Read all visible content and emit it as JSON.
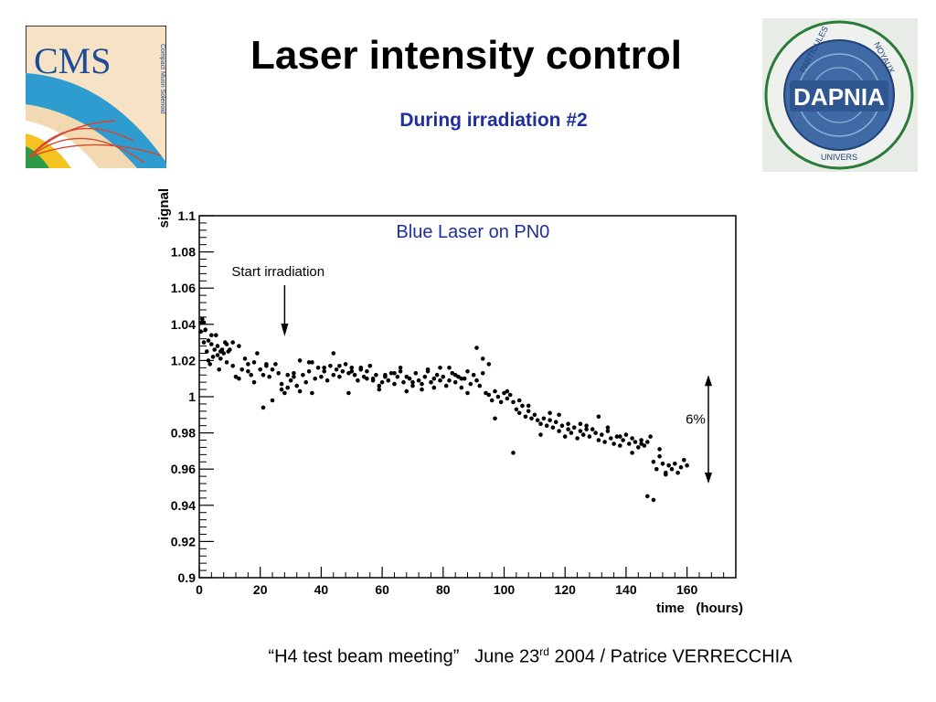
{
  "slide": {
    "title": "Laser intensity control",
    "subtitle": "During irradiation #2",
    "footer": {
      "meeting": "“H4 test beam meeting”",
      "date_pre": "June 23",
      "date_sup": "rd",
      "date_post": " 2004 / Patrice VERRECCHIA"
    }
  },
  "logos": {
    "left": {
      "text": "CMS",
      "caption": "Compact Muon Solenoid"
    },
    "right": {
      "text": "DAPNIA",
      "ring_top": "PARTICULES",
      "ring_right": "NOYAUX",
      "ring_bottom": "UNIVERS"
    }
  },
  "colors": {
    "title": "#000000",
    "subtitle": "#1f2f9e",
    "chart_title": "#1f2f9e",
    "markers": "#000000"
  },
  "chart_data": {
    "type": "scatter",
    "title": "Blue Laser on PN0",
    "xlabel": "time   (hours)",
    "ylabel": "signal",
    "xlim": [
      0,
      176
    ],
    "ylim": [
      0.9,
      1.1
    ],
    "xticks": [
      0,
      20,
      40,
      60,
      80,
      100,
      120,
      140,
      160
    ],
    "yticks": [
      0.9,
      0.92,
      0.94,
      0.96,
      0.98,
      1,
      1.02,
      1.04,
      1.06,
      1.08,
      1.1
    ],
    "ytick_labels": [
      "0.9",
      "0.92",
      "0.94",
      "0.96",
      "0.98",
      "1",
      "1.02",
      "1.04",
      "1.06",
      "1.08",
      "1.1"
    ],
    "grid": false,
    "annotations": [
      {
        "text": "Start irradiation",
        "x": 28
      },
      {
        "text": "6%",
        "y_range": [
          0.953,
          1.011
        ]
      }
    ],
    "series": [
      {
        "x": [
          0.5,
          1,
          1.5,
          2,
          2.5,
          3,
          3.5,
          4,
          4.5,
          5,
          5.5,
          6,
          6.5,
          7,
          7.5,
          8,
          8.5,
          9,
          9.5,
          10,
          11,
          12,
          13,
          14,
          15,
          16,
          17,
          18,
          19,
          20,
          21,
          22,
          23,
          24,
          25,
          26,
          27,
          28,
          29,
          30,
          31,
          32,
          33,
          34,
          35,
          36,
          37,
          38,
          39,
          40,
          41,
          42,
          43,
          44,
          45,
          46,
          47,
          48,
          49,
          50,
          51,
          52,
          53,
          54,
          55,
          56,
          57,
          58,
          59,
          60,
          61,
          62,
          63,
          64,
          65,
          66,
          67,
          68,
          69,
          70,
          71,
          72,
          73,
          74,
          75,
          76,
          77,
          78,
          79,
          80,
          81,
          82,
          83,
          84,
          85,
          86,
          87,
          88,
          89,
          90,
          91,
          92,
          93,
          94,
          95,
          96,
          97,
          98,
          99,
          100,
          101,
          102,
          103,
          104,
          105,
          106,
          107,
          108,
          109,
          110,
          111,
          112,
          113,
          114,
          115,
          116,
          117,
          118,
          119,
          120,
          121,
          122,
          123,
          124,
          125,
          126,
          127,
          128,
          129,
          130,
          131,
          132,
          133,
          134,
          135,
          136,
          137,
          138,
          139,
          140,
          141,
          142,
          143,
          144,
          145,
          146,
          147,
          148,
          149,
          150,
          151,
          152,
          153,
          154,
          155,
          156,
          157,
          158,
          159,
          160,
          1.5,
          4,
          6,
          9,
          13,
          18,
          22,
          24,
          29,
          33,
          37,
          41,
          46,
          50,
          55,
          57,
          61,
          66,
          70,
          75,
          79,
          84,
          86,
          91,
          95,
          101,
          105,
          108,
          115,
          118,
          125,
          131,
          138,
          145,
          147,
          151,
          153,
          0.8,
          3,
          7,
          11,
          16,
          21,
          27,
          31,
          36,
          44,
          49,
          53,
          59,
          64,
          68,
          73,
          77,
          82,
          88,
          93,
          97,
          103,
          112,
          121,
          127,
          134,
          142,
          149
        ],
        "y": [
          1.036,
          1.043,
          1.03,
          1.037,
          1.025,
          1.031,
          1.018,
          1.029,
          1.022,
          1.026,
          1.034,
          1.023,
          1.015,
          1.021,
          1.026,
          1.024,
          1.03,
          1.019,
          1.025,
          1.026,
          1.017,
          1.011,
          1.028,
          1.015,
          1.021,
          1.018,
          1.012,
          1.019,
          1.024,
          1.015,
          1.012,
          1.017,
          1.011,
          1.015,
          1.018,
          1.013,
          1.007,
          1.002,
          1.005,
          1.009,
          1.011,
          1.006,
          1.003,
          1.012,
          1.008,
          1.014,
          1.002,
          1.01,
          1.016,
          1.011,
          1.014,
          1.009,
          1.017,
          1.012,
          1.015,
          1.011,
          1.014,
          1.018,
          1.013,
          1.016,
          1.012,
          1.009,
          1.015,
          1.011,
          1.014,
          1.017,
          1.009,
          1.012,
          1.006,
          1.008,
          1.011,
          1.009,
          1.013,
          1.007,
          1.011,
          1.014,
          1.008,
          1.003,
          1.01,
          1.006,
          1.013,
          1.009,
          1.004,
          1.011,
          1.014,
          1.008,
          1.005,
          1.012,
          1.009,
          1.011,
          1.006,
          1.009,
          1.013,
          1.008,
          1.011,
          1.005,
          1.01,
          1.014,
          1.007,
          1.012,
          1.009,
          1.006,
          1.013,
          1.002,
          1.001,
          0.998,
          1.003,
          1,
          0.997,
          1.002,
          0.999,
          1.001,
          0.997,
          0.993,
          0.991,
          0.995,
          0.989,
          0.992,
          0.988,
          0.99,
          0.987,
          0.985,
          0.988,
          0.984,
          0.987,
          0.983,
          0.986,
          0.981,
          0.984,
          0.978,
          0.982,
          0.98,
          0.983,
          0.977,
          0.981,
          0.979,
          0.984,
          0.978,
          0.982,
          0.98,
          0.976,
          0.979,
          0.975,
          0.981,
          0.977,
          0.974,
          0.978,
          0.973,
          0.976,
          0.979,
          0.974,
          0.977,
          0.975,
          0.972,
          0.976,
          0.973,
          0.975,
          0.978,
          0.964,
          0.96,
          0.967,
          0.963,
          0.958,
          0.962,
          0.96,
          0.963,
          0.958,
          0.961,
          0.965,
          0.962,
          1.041,
          1.034,
          1.028,
          1.029,
          1.01,
          1.008,
          1.018,
          0.998,
          1.012,
          1.02,
          1.019,
          1.016,
          1.017,
          1.014,
          1.01,
          1.01,
          1.012,
          1.016,
          1.008,
          1.015,
          1.016,
          1.012,
          1.01,
          1.027,
          1.018,
          1.003,
          0.998,
          0.995,
          0.991,
          0.99,
          0.985,
          0.989,
          0.978,
          0.974,
          0.945,
          0.971,
          0.957,
          1.041,
          1.02,
          1.025,
          1.03,
          1.014,
          0.994,
          1.004,
          1.013,
          1.019,
          1.024,
          1.002,
          1.016,
          1.004,
          1.013,
          1.011,
          1.007,
          1.01,
          1.016,
          1.002,
          1.021,
          0.988,
          0.969,
          0.979,
          0.985,
          0.982,
          0.983,
          0.969,
          0.943
        ]
      }
    ]
  }
}
